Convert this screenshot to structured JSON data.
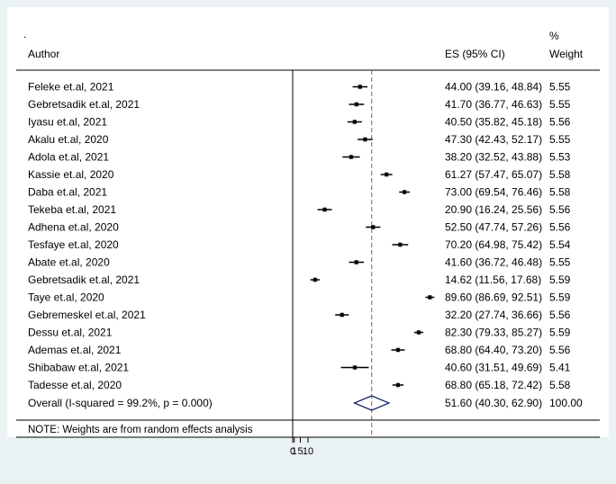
{
  "chart_data": {
    "type": "forest",
    "dot_mark": ".",
    "headers": {
      "author": "Author",
      "es": "ES (95% CI)",
      "weight_line1": "%",
      "weight_line2": "Weight"
    },
    "studies": [
      {
        "author": "Feleke et.al, 2021",
        "es": 44.0,
        "lo": 39.16,
        "hi": 48.84,
        "es_label": "44.00 (39.16, 48.84)",
        "weight": "5.55"
      },
      {
        "author": "Gebretsadik et.al, 2021",
        "es": 41.7,
        "lo": 36.77,
        "hi": 46.63,
        "es_label": "41.70 (36.77, 46.63)",
        "weight": "5.55"
      },
      {
        "author": "Iyasu et.al, 2021",
        "es": 40.5,
        "lo": 35.82,
        "hi": 45.18,
        "es_label": "40.50 (35.82, 45.18)",
        "weight": "5.56"
      },
      {
        "author": "Akalu et.al, 2020",
        "es": 47.3,
        "lo": 42.43,
        "hi": 52.17,
        "es_label": "47.30 (42.43, 52.17)",
        "weight": "5.55"
      },
      {
        "author": "Adola et.al, 2021",
        "es": 38.2,
        "lo": 32.52,
        "hi": 43.88,
        "es_label": "38.20 (32.52, 43.88)",
        "weight": "5.53"
      },
      {
        "author": "Kassie et.al, 2020",
        "es": 61.27,
        "lo": 57.47,
        "hi": 65.07,
        "es_label": "61.27 (57.47, 65.07)",
        "weight": "5.58"
      },
      {
        "author": "Daba et.al, 2021",
        "es": 73.0,
        "lo": 69.54,
        "hi": 76.46,
        "es_label": "73.00 (69.54, 76.46)",
        "weight": "5.58"
      },
      {
        "author": "Tekeba et.al, 2021",
        "es": 20.9,
        "lo": 16.24,
        "hi": 25.56,
        "es_label": "20.90 (16.24, 25.56)",
        "weight": "5.56"
      },
      {
        "author": "Adhena et.al, 2020",
        "es": 52.5,
        "lo": 47.74,
        "hi": 57.26,
        "es_label": "52.50 (47.74, 57.26)",
        "weight": "5.56"
      },
      {
        "author": "Tesfaye et.al, 2020",
        "es": 70.2,
        "lo": 64.98,
        "hi": 75.42,
        "es_label": "70.20 (64.98, 75.42)",
        "weight": "5.54"
      },
      {
        "author": "Abate et.al, 2020",
        "es": 41.6,
        "lo": 36.72,
        "hi": 46.48,
        "es_label": "41.60 (36.72, 46.48)",
        "weight": "5.55"
      },
      {
        "author": "Gebretsadik et.al, 2021",
        "es": 14.62,
        "lo": 11.56,
        "hi": 17.68,
        "es_label": "14.62 (11.56, 17.68)",
        "weight": "5.59"
      },
      {
        "author": "Taye et.al, 2020",
        "es": 89.6,
        "lo": 86.69,
        "hi": 92.51,
        "es_label": "89.60 (86.69, 92.51)",
        "weight": "5.59"
      },
      {
        "author": "Gebremeskel et.al, 2021",
        "es": 32.2,
        "lo": 27.74,
        "hi": 36.66,
        "es_label": "32.20 (27.74, 36.66)",
        "weight": "5.56"
      },
      {
        "author": "Dessu et.al, 2021",
        "es": 82.3,
        "lo": 79.33,
        "hi": 85.27,
        "es_label": "82.30 (79.33, 85.27)",
        "weight": "5.59"
      },
      {
        "author": "Ademas et.al, 2021",
        "es": 68.8,
        "lo": 64.4,
        "hi": 73.2,
        "es_label": "68.80 (64.40, 73.20)",
        "weight": "5.56"
      },
      {
        "author": "Shibabaw et.al, 2021",
        "es": 40.6,
        "lo": 31.51,
        "hi": 49.69,
        "es_label": "40.60 (31.51, 49.69)",
        "weight": "5.41"
      },
      {
        "author": "Tadesse et.al, 2020",
        "es": 68.8,
        "lo": 65.18,
        "hi": 72.42,
        "es_label": "68.80 (65.18, 72.42)",
        "weight": "5.58"
      }
    ],
    "overall": {
      "label": "Overall  (I-squared = 99.2%, p = 0.000)",
      "es": 51.6,
      "lo": 40.3,
      "hi": 62.9,
      "es_label": "51.60 (40.30, 62.90)",
      "weight": "100.00"
    },
    "note": "NOTE: Weights are from random effects analysis",
    "x_ticks": [
      "0",
      "1",
      "5",
      "10"
    ],
    "null_line": 0,
    "colors": {
      "background": "#eaf2f3",
      "panel": "#ffffff",
      "marker": "#000000",
      "ref_line": "#b5443c",
      "diamond": "#1b2b6b"
    }
  }
}
